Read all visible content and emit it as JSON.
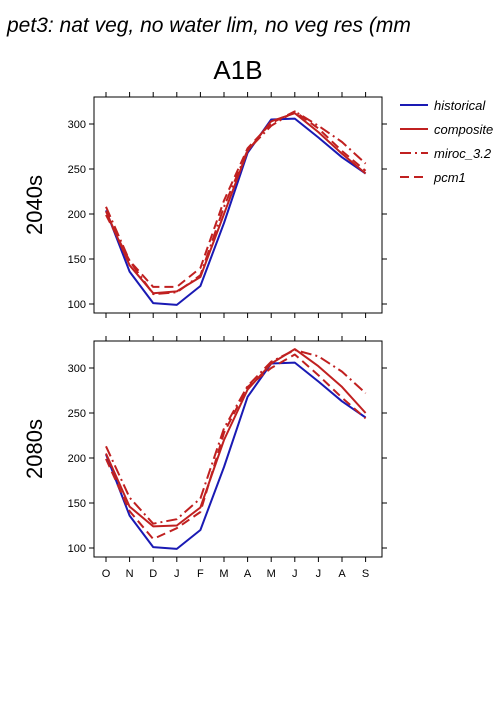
{
  "title": "pet3: nat veg, no water lim, no veg res (mm",
  "scenario": "A1B",
  "chart_data": {
    "type": "line",
    "categories": [
      "O",
      "N",
      "D",
      "J",
      "F",
      "M",
      "A",
      "M",
      "J",
      "J",
      "A",
      "S"
    ],
    "colors": {
      "historical": "#1a1ab4",
      "models": "#c02020"
    },
    "legend": {
      "placement": "top-right",
      "entries": [
        {
          "label": "historical",
          "style": "solid",
          "color": "#1a1ab4"
        },
        {
          "label": "composite",
          "style": "solid",
          "color": "#c02020"
        },
        {
          "label": "miroc_3.2",
          "style": "dashdot",
          "color": "#c02020"
        },
        {
          "label": "pcm1",
          "style": "dashed",
          "color": "#c02020"
        }
      ]
    },
    "panels": [
      {
        "label": "2040s",
        "ylim": [
          90,
          330
        ],
        "yticks": [
          100,
          150,
          200,
          250,
          300
        ],
        "series": [
          {
            "name": "historical",
            "values": [
              204,
              136,
              101,
              99,
              120,
              190,
              268,
              305,
              306,
              285,
              263,
              245
            ]
          },
          {
            "name": "composite",
            "values": [
              203,
              143,
              112,
              114,
              130,
              200,
              270,
              303,
              312,
              291,
              267,
              245
            ]
          },
          {
            "name": "miroc_3.2",
            "values": [
              208,
              148,
              111,
              113,
              132,
              208,
              271,
              298,
              314,
              298,
              280,
              256
            ]
          },
          {
            "name": "pcm1",
            "values": [
              199,
              148,
              119,
              119,
              140,
              215,
              273,
              301,
              314,
              295,
              270,
              248
            ]
          }
        ]
      },
      {
        "label": "2080s",
        "ylim": [
          90,
          330
        ],
        "yticks": [
          100,
          150,
          200,
          250,
          300
        ],
        "series": [
          {
            "name": "historical",
            "values": [
              204,
              136,
              101,
              99,
              120,
              190,
              268,
              305,
              306,
              285,
              263,
              245
            ]
          },
          {
            "name": "composite",
            "values": [
              205,
              146,
              124,
              125,
              145,
              220,
              276,
              305,
              321,
              302,
              279,
              250
            ]
          },
          {
            "name": "miroc_3.2",
            "values": [
              213,
              156,
              127,
              132,
              155,
              233,
              280,
              307,
              320,
              313,
              296,
              272
            ]
          },
          {
            "name": "pcm1",
            "values": [
              199,
              141,
              110,
              122,
              140,
              228,
              279,
              300,
              315,
              292,
              267,
              244
            ]
          }
        ]
      }
    ]
  }
}
